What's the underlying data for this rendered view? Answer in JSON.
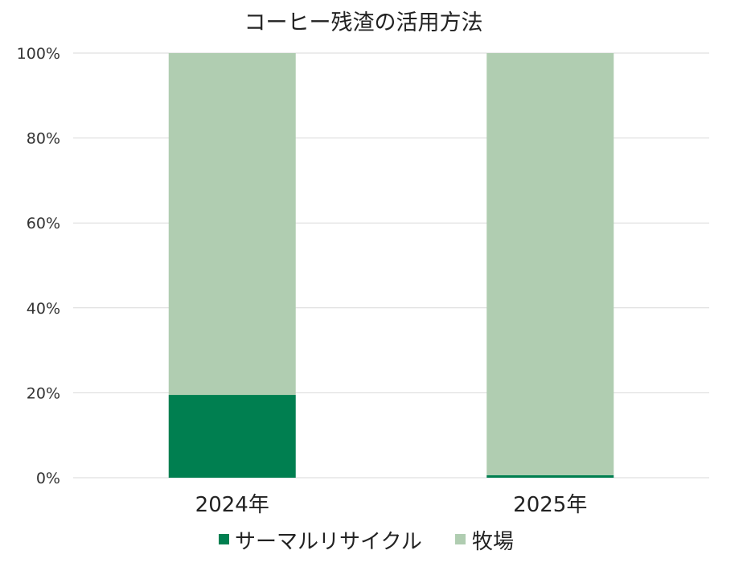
{
  "chart_data": {
    "type": "bar",
    "stacked": true,
    "title": "コーヒー残渣の活用方法",
    "xlabel": "",
    "ylabel": "",
    "categories": [
      "2024年",
      "2025年"
    ],
    "series": [
      {
        "name": "サーマルリサイクル",
        "values": [
          0.195,
          0.006
        ],
        "color": "#007f50"
      },
      {
        "name": "牧場",
        "values": [
          0.805,
          0.994
        ],
        "color": "#b0cdb1"
      }
    ],
    "ylim": [
      0,
      1
    ],
    "yticks": [
      0,
      0.2,
      0.4,
      0.6,
      0.8,
      1.0
    ],
    "ytick_labels": [
      "0%",
      "20%",
      "40%",
      "60%",
      "80%",
      "100%"
    ],
    "grid": true,
    "legend_position": "bottom"
  }
}
